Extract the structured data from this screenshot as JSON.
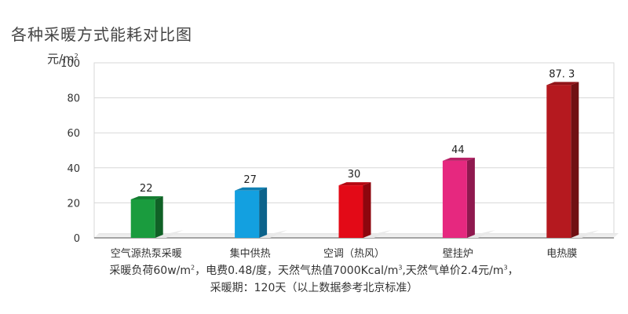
{
  "title": "各种采暖方式能耗对比图",
  "unit": {
    "prefix": "元/m",
    "sup": "2"
  },
  "chart_data": {
    "type": "bar",
    "categories": [
      "空气源热泵采暖",
      "集中供热",
      "空调（热风）",
      "壁挂炉",
      "电热膜"
    ],
    "values": [
      22,
      27,
      30,
      44,
      87.3
    ],
    "value_labels": [
      "22",
      "27",
      "30",
      "44",
      "87. 3"
    ],
    "colors": [
      "#1a9c3e",
      "#13a0e0",
      "#e30a17",
      "#e6287f",
      "#b5191f"
    ],
    "ylim": [
      0,
      100
    ],
    "yticks": [
      0,
      20,
      40,
      60,
      80,
      100
    ],
    "grid": true,
    "legend": "none"
  },
  "note": {
    "line1_a": "采暖负荷60w/m",
    "line1_sup1": "2",
    "line1_b": "，电费0.48/度，天然气热值7000Kcal/m",
    "line1_sup2": "3",
    "line1_c": ",天然气单价2.4元/m",
    "line1_sup3": "3",
    "line1_d": "，",
    "line2": "采暖期：120天（以上数据参考北京标准）"
  }
}
